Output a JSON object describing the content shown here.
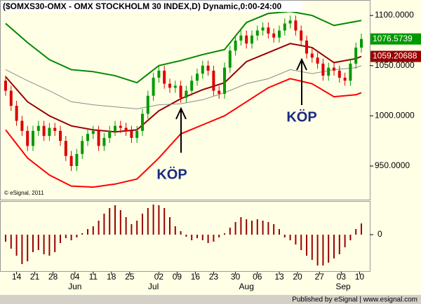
{
  "chart_data": [
    {
      "type": "candlestick",
      "title": "($OMXS30-OMX - OMX STOCKHOLM 30 INDEX,D) Dynamic,0:00-24:00",
      "watermark": "© eSignal, 2011",
      "annotations": [
        "KÖP",
        "KÖP"
      ],
      "up_color": "#009a00",
      "down_color": "#dd0000",
      "xlim": [
        0,
        100
      ],
      "xticks": [
        {
          "value": 3,
          "label": "14"
        },
        {
          "value": 8,
          "label": "21"
        },
        {
          "value": 13,
          "label": "28"
        },
        {
          "value": 19,
          "label": "04"
        },
        {
          "value": 24,
          "label": "11"
        },
        {
          "value": 29,
          "label": "18"
        },
        {
          "value": 34,
          "label": "25"
        },
        {
          "value": 42,
          "label": "02"
        },
        {
          "value": 47,
          "label": "09"
        },
        {
          "value": 52,
          "label": "16"
        },
        {
          "value": 57,
          "label": "23"
        },
        {
          "value": 63,
          "label": "30"
        },
        {
          "value": 69,
          "label": "06"
        },
        {
          "value": 75,
          "label": "13"
        },
        {
          "value": 80,
          "label": "20"
        },
        {
          "value": 86,
          "label": "27"
        },
        {
          "value": 92,
          "label": "03"
        },
        {
          "value": 97,
          "label": "10"
        }
      ],
      "month_ticks": [
        {
          "value": 19,
          "label": "Jun"
        },
        {
          "value": 40.5,
          "label": "Jul"
        },
        {
          "value": 66,
          "label": "Aug"
        },
        {
          "value": 92.5,
          "label": "Sep"
        }
      ],
      "ylim": [
        916.5,
        1115.4
      ],
      "yticks": [
        {
          "value": 1100,
          "label": "1100.0000"
        },
        {
          "value": 1050,
          "label": "1050.0000"
        },
        {
          "value": 1000,
          "label": "1000.0000"
        },
        {
          "value": 950,
          "label": "950.0000"
        }
      ],
      "grid": false,
      "x": [
        0,
        1.5,
        3,
        4.5,
        6,
        7.5,
        9,
        10.5,
        12,
        13.5,
        15,
        16.5,
        18,
        19.5,
        21,
        22.5,
        24,
        25.5,
        27,
        28.5,
        30,
        31.5,
        33,
        34.5,
        36,
        37.5,
        39,
        40.5,
        42,
        43.5,
        45,
        46.5,
        48,
        49.5,
        51,
        52.5,
        54,
        55.5,
        57,
        58.5,
        60,
        61.5,
        63,
        64.5,
        66,
        67.5,
        69,
        70.5,
        72,
        73.5,
        75,
        76.5,
        78,
        79.5,
        81,
        82.5,
        84,
        85.5,
        87,
        88.5,
        90,
        91.5,
        93,
        94.5,
        96,
        97.5
      ],
      "open": [
        1035,
        1025,
        1010,
        995,
        985,
        970,
        985,
        990,
        980,
        988,
        985,
        975,
        960,
        950,
        962,
        975,
        982,
        985,
        970,
        978,
        985,
        990,
        988,
        985,
        978,
        985,
        1002,
        1020,
        1038,
        1045,
        1032,
        1028,
        1030,
        1018,
        1025,
        1035,
        1042,
        1050,
        1045,
        1025,
        1022,
        1048,
        1065,
        1075,
        1080,
        1072,
        1080,
        1085,
        1088,
        1082,
        1078,
        1085,
        1092,
        1095,
        1085,
        1075,
        1062,
        1058,
        1052,
        1040,
        1048,
        1045,
        1038,
        1035,
        1052,
        1068
      ],
      "high": [
        1040,
        1030,
        1015,
        1000,
        990,
        990,
        995,
        995,
        993,
        993,
        990,
        980,
        965,
        967,
        980,
        987,
        990,
        990,
        983,
        990,
        995,
        995,
        993,
        990,
        990,
        1007,
        1025,
        1043,
        1050,
        1050,
        1037,
        1035,
        1035,
        1030,
        1040,
        1047,
        1055,
        1055,
        1050,
        1030,
        1053,
        1070,
        1080,
        1085,
        1085,
        1085,
        1090,
        1093,
        1093,
        1087,
        1090,
        1097,
        1100,
        1100,
        1090,
        1080,
        1067,
        1063,
        1057,
        1053,
        1053,
        1050,
        1043,
        1057,
        1073,
        1082
      ],
      "low": [
        1020,
        1005,
        990,
        980,
        965,
        965,
        980,
        975,
        975,
        980,
        970,
        955,
        945,
        945,
        957,
        970,
        977,
        965,
        965,
        973,
        980,
        983,
        980,
        973,
        973,
        980,
        997,
        1015,
        1033,
        1027,
        1023,
        1023,
        1013,
        1013,
        1020,
        1030,
        1037,
        1040,
        1020,
        1017,
        1017,
        1043,
        1060,
        1070,
        1067,
        1067,
        1075,
        1080,
        1077,
        1073,
        1073,
        1080,
        1087,
        1080,
        1070,
        1057,
        1053,
        1047,
        1035,
        1035,
        1040,
        1033,
        1030,
        1030,
        1047,
        1063
      ],
      "close": [
        1025,
        1010,
        995,
        985,
        970,
        985,
        990,
        980,
        988,
        985,
        975,
        960,
        950,
        962,
        975,
        982,
        985,
        970,
        978,
        985,
        990,
        988,
        985,
        978,
        985,
        1002,
        1020,
        1038,
        1045,
        1032,
        1028,
        1030,
        1018,
        1025,
        1035,
        1042,
        1050,
        1045,
        1025,
        1022,
        1048,
        1065,
        1075,
        1080,
        1072,
        1080,
        1085,
        1088,
        1082,
        1078,
        1085,
        1092,
        1095,
        1085,
        1075,
        1062,
        1058,
        1052,
        1040,
        1048,
        1045,
        1038,
        1035,
        1052,
        1068,
        1076.5739
      ],
      "series": [
        {
          "color": "#008800",
          "x": [
            0,
            6,
            12,
            18,
            24,
            30,
            36,
            42,
            48,
            54,
            60,
            66,
            72,
            78,
            84,
            90,
            96,
            97.5
          ],
          "values": [
            1092,
            1073,
            1056,
            1046,
            1044,
            1040,
            1033,
            1050,
            1055,
            1061,
            1066,
            1093,
            1102,
            1104,
            1100,
            1090,
            1094,
            1095
          ]
        },
        {
          "color": "#990000",
          "x": [
            0,
            6,
            12,
            18,
            24,
            30,
            36,
            42,
            48,
            54,
            60,
            66,
            72,
            78,
            84,
            90,
            96,
            97.5
          ],
          "values": [
            1039,
            1014,
            1000,
            990,
            986,
            984,
            986,
            1005,
            1017,
            1026,
            1033,
            1054,
            1063,
            1072,
            1068,
            1053,
            1057,
            1059.20688
          ]
        },
        {
          "color": "#8c8c8c",
          "x": [
            0,
            6,
            12,
            18,
            24,
            30,
            36,
            42,
            48,
            54,
            60,
            66,
            72,
            78,
            84,
            90,
            96,
            97.5
          ],
          "values": [
            1046,
            1035,
            1025,
            1014,
            1011,
            1009,
            1007,
            1011,
            1012,
            1016,
            1023,
            1032,
            1037,
            1046,
            1042,
            1046,
            1048,
            1050
          ]
        },
        {
          "color": "#ff0000",
          "x": [
            0,
            6,
            12,
            18,
            24,
            30,
            36,
            42,
            48,
            54,
            60,
            66,
            72,
            78,
            84,
            90,
            96,
            97.5
          ],
          "values": [
            986,
            958,
            941,
            930,
            929,
            932,
            937,
            958,
            982,
            991,
            1000,
            1014,
            1028,
            1037,
            1032,
            1019,
            1021,
            1023
          ]
        }
      ]
    },
    {
      "type": "bar",
      "color": "#990000",
      "ylim": [
        -53,
        47
      ],
      "yticks": [
        0
      ],
      "values": [
        -10,
        -20,
        -30,
        -42,
        -38,
        -25,
        -22,
        -28,
        -30,
        -25,
        -12,
        -5,
        -8,
        -4,
        2,
        8,
        12,
        20,
        30,
        38,
        42,
        35,
        25,
        15,
        20,
        30,
        38,
        43,
        42,
        38,
        25,
        12,
        5,
        -3,
        -8,
        -5,
        -8,
        -12,
        -10,
        -4,
        2,
        10,
        18,
        25,
        22,
        20,
        22,
        20,
        18,
        15,
        8,
        -4,
        -8,
        -14,
        -22,
        -30,
        -36,
        -44,
        -44,
        -40,
        -34,
        -28,
        -18,
        -8,
        8,
        16
      ]
    }
  ],
  "footer": "Published by eSignal | www.esignal.com"
}
